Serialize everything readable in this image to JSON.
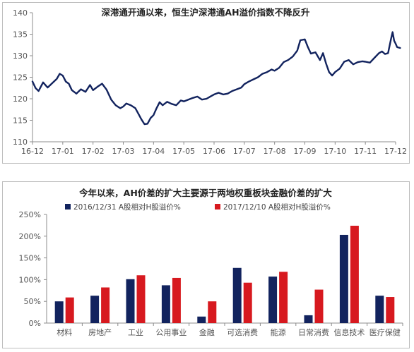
{
  "colors": {
    "navy": "#12235e",
    "red": "#d7191f",
    "axis": "#8c8c8c",
    "grid": "#dcdcdc"
  },
  "chart_data": [
    {
      "type": "line",
      "title": "深港通开通以来，恒生沪深港通AH溢价指数不降反升",
      "xlabel": "",
      "ylabel": "",
      "ylim": [
        110,
        140
      ],
      "yticks": [
        "110",
        "115",
        "120",
        "125",
        "130",
        "135",
        "140"
      ],
      "xticks": [
        "16-12",
        "17-01",
        "17-02",
        "17-03",
        "17-04",
        "17-05",
        "17-06",
        "17-07",
        "17-08",
        "17-09",
        "17-10",
        "17-11",
        "17-12"
      ],
      "grid": false,
      "series": [
        {
          "color": "#12235e",
          "points": [
            [
              0.0,
              124.0
            ],
            [
              0.1,
              122.5
            ],
            [
              0.2,
              121.8
            ],
            [
              0.35,
              123.8
            ],
            [
              0.5,
              122.6
            ],
            [
              0.65,
              123.6
            ],
            [
              0.8,
              124.6
            ],
            [
              0.9,
              125.8
            ],
            [
              1.0,
              125.4
            ],
            [
              1.1,
              124.0
            ],
            [
              1.2,
              123.5
            ],
            [
              1.3,
              122.0
            ],
            [
              1.45,
              121.2
            ],
            [
              1.6,
              122.2
            ],
            [
              1.75,
              121.6
            ],
            [
              1.9,
              123.2
            ],
            [
              2.0,
              122.0
            ],
            [
              2.15,
              122.8
            ],
            [
              2.3,
              123.5
            ],
            [
              2.45,
              122.1
            ],
            [
              2.6,
              119.8
            ],
            [
              2.75,
              118.5
            ],
            [
              2.9,
              117.8
            ],
            [
              3.0,
              118.2
            ],
            [
              3.1,
              118.9
            ],
            [
              3.25,
              118.5
            ],
            [
              3.4,
              117.8
            ],
            [
              3.5,
              116.5
            ],
            [
              3.6,
              115.2
            ],
            [
              3.7,
              114.1
            ],
            [
              3.8,
              114.2
            ],
            [
              3.9,
              115.5
            ],
            [
              4.0,
              116.2
            ],
            [
              4.1,
              117.8
            ],
            [
              4.2,
              119.2
            ],
            [
              4.3,
              118.5
            ],
            [
              4.45,
              119.3
            ],
            [
              4.6,
              118.8
            ],
            [
              4.75,
              118.5
            ],
            [
              4.9,
              119.6
            ],
            [
              5.0,
              119.4
            ],
            [
              5.15,
              119.8
            ],
            [
              5.3,
              120.2
            ],
            [
              5.45,
              120.5
            ],
            [
              5.6,
              119.8
            ],
            [
              5.75,
              120.0
            ],
            [
              5.9,
              120.6
            ],
            [
              6.0,
              121.0
            ],
            [
              6.15,
              121.4
            ],
            [
              6.3,
              121.0
            ],
            [
              6.45,
              121.2
            ],
            [
              6.6,
              121.8
            ],
            [
              6.75,
              122.2
            ],
            [
              6.9,
              122.6
            ],
            [
              7.0,
              123.4
            ],
            [
              7.15,
              124.0
            ],
            [
              7.3,
              124.5
            ],
            [
              7.45,
              125.0
            ],
            [
              7.6,
              125.8
            ],
            [
              7.75,
              126.2
            ],
            [
              7.9,
              126.8
            ],
            [
              8.0,
              126.5
            ],
            [
              8.15,
              127.2
            ],
            [
              8.3,
              128.5
            ],
            [
              8.45,
              129.0
            ],
            [
              8.6,
              129.8
            ],
            [
              8.75,
              131.2
            ],
            [
              8.85,
              133.6
            ],
            [
              9.0,
              133.8
            ],
            [
              9.1,
              132.0
            ],
            [
              9.2,
              130.5
            ],
            [
              9.35,
              130.8
            ],
            [
              9.5,
              129.0
            ],
            [
              9.6,
              130.6
            ],
            [
              9.7,
              128.2
            ],
            [
              9.8,
              126.2
            ],
            [
              9.9,
              125.4
            ],
            [
              10.0,
              126.2
            ],
            [
              10.15,
              127.0
            ],
            [
              10.3,
              128.6
            ],
            [
              10.45,
              129.0
            ],
            [
              10.6,
              128.0
            ],
            [
              10.75,
              128.5
            ],
            [
              10.9,
              128.7
            ],
            [
              11.0,
              128.6
            ],
            [
              11.15,
              128.4
            ],
            [
              11.3,
              129.5
            ],
            [
              11.45,
              130.6
            ],
            [
              11.55,
              131.0
            ],
            [
              11.65,
              130.4
            ],
            [
              11.75,
              130.6
            ],
            [
              11.85,
              134.0
            ],
            [
              11.9,
              135.5
            ],
            [
              11.95,
              133.5
            ],
            [
              12.0,
              132.8
            ],
            [
              12.05,
              132.0
            ],
            [
              12.15,
              131.8
            ]
          ]
        }
      ]
    },
    {
      "type": "bar",
      "title": "今年以来，AH价差的扩大主要源于两地权重板块金融价差的扩大",
      "xlabel": "",
      "ylabel": "",
      "ylim": [
        0,
        250
      ],
      "yticks": [
        "0%",
        "50%",
        "100%",
        "150%",
        "200%",
        "250%"
      ],
      "categories": [
        "材料",
        "房地产",
        "工业",
        "公用事业",
        "金融",
        "可选消费",
        "能源",
        "日常消费",
        "信息技术",
        "医疗保健"
      ],
      "legend_position": "top",
      "grid": false,
      "series": [
        {
          "name": "2016/12/31 A股相对H股溢价%",
          "color": "#12235e",
          "values": [
            50,
            63,
            101,
            87,
            15,
            127,
            107,
            18,
            203,
            63
          ]
        },
        {
          "name": "2017/12/10 A股相对H股溢价%",
          "color": "#d7191f",
          "values": [
            59,
            82,
            110,
            104,
            50,
            93,
            118,
            77,
            224,
            60
          ]
        }
      ]
    }
  ]
}
